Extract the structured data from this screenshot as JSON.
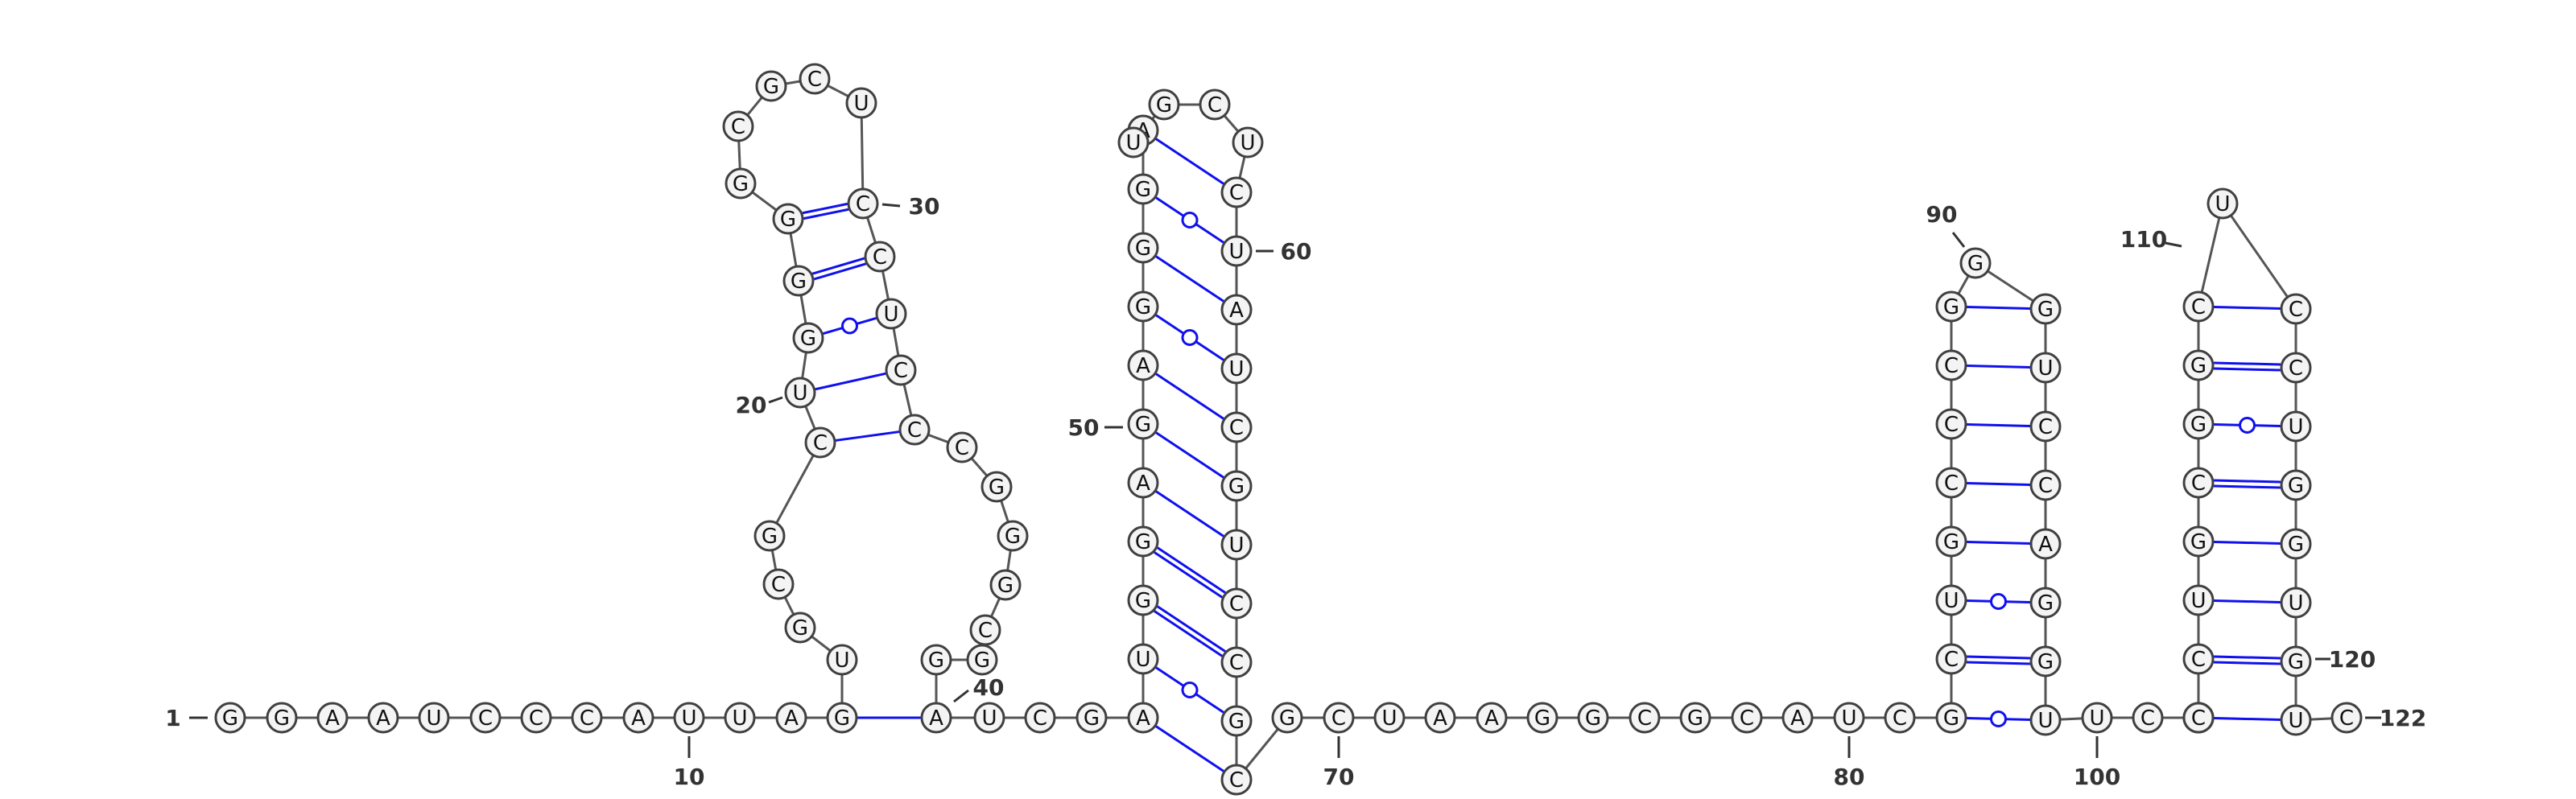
{
  "sequence": "GGAAUCCCAUUAGUGCGCUGGGGCGCUCCUCCCGGGCGGAUCGAUGGAGAGGGAUGCUCUAUCGUCCGCGCUAAGGCGCAUCGCUGCCCGGGUCCAGGUUCAAUCCUGCGGCUCCUGGUGUC",
  "sequence_length": 122,
  "position_labels": [
    "1",
    "10",
    "20",
    "30",
    "40",
    "50",
    "60",
    "70",
    "80",
    "90",
    "100",
    "110",
    "120",
    "122"
  ],
  "pairs": [
    [
      13,
      40
    ],
    [
      18,
      32
    ],
    [
      19,
      31
    ],
    [
      20,
      30
    ],
    [
      21,
      29
    ],
    [
      22,
      28
    ],
    [
      44,
      69
    ],
    [
      45,
      68
    ],
    [
      46,
      67
    ],
    [
      47,
      66
    ],
    [
      48,
      65
    ],
    [
      49,
      64
    ],
    [
      50,
      63
    ],
    [
      51,
      62
    ],
    [
      52,
      61
    ],
    [
      53,
      60
    ],
    [
      54,
      59
    ],
    [
      83,
      99
    ],
    [
      84,
      98
    ],
    [
      85,
      97
    ],
    [
      86,
      96
    ],
    [
      87,
      95
    ],
    [
      88,
      94
    ],
    [
      89,
      93
    ],
    [
      90,
      92
    ],
    [
      105,
      121
    ],
    [
      106,
      120
    ],
    [
      107,
      119
    ],
    [
      108,
      118
    ],
    [
      109,
      117
    ],
    [
      110,
      116
    ],
    [
      111,
      115
    ],
    [
      112,
      114
    ]
  ],
  "colors": {
    "pair_line": "#1010ee",
    "backbone": "#555555",
    "circle_fill": "#f4f4f4",
    "circle_stroke": "#404040"
  }
}
